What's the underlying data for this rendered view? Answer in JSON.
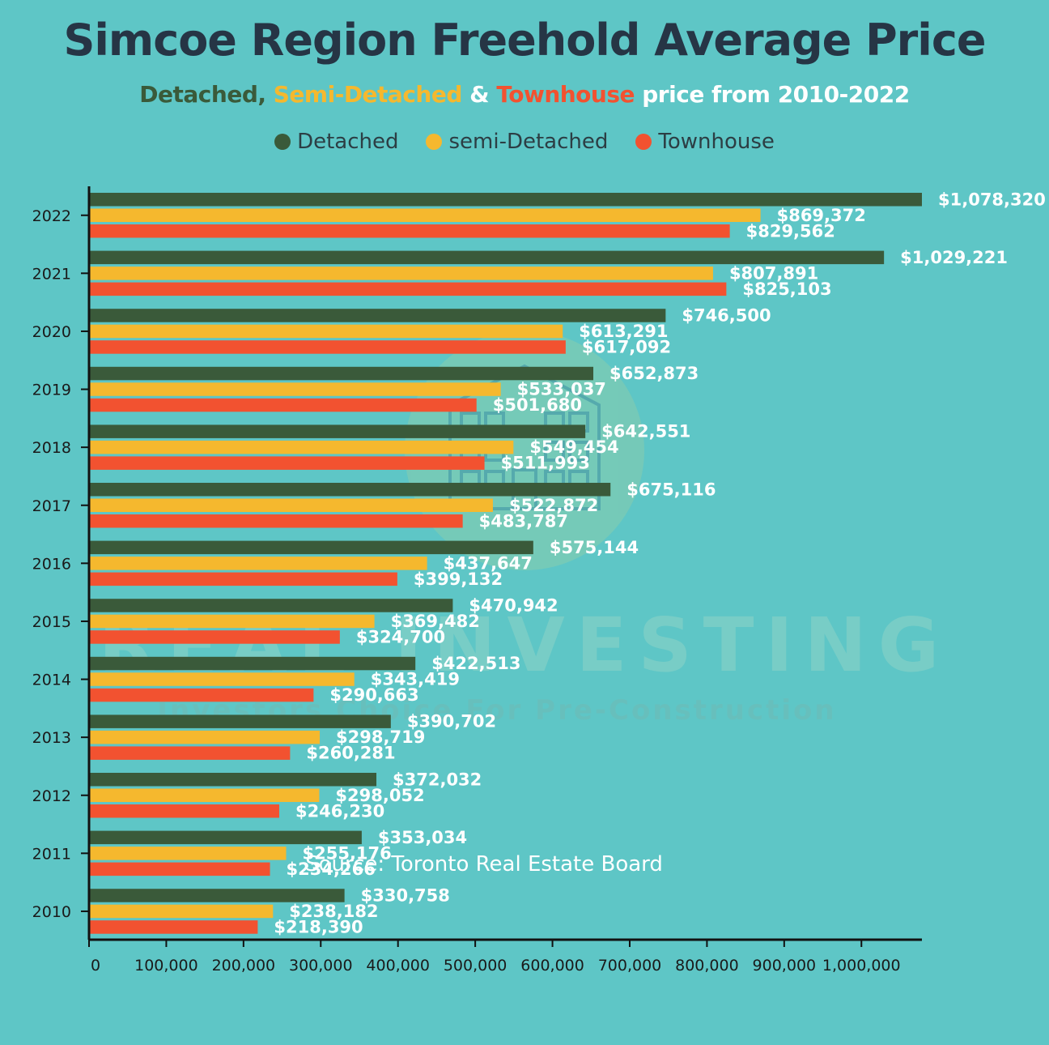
{
  "chart_data": {
    "type": "bar",
    "orientation": "horizontal",
    "title": "Simcoe Region Freehold Average Price",
    "subtitle": {
      "detached": "Detached,",
      "semi": "Semi-Detached",
      "amp": "&",
      "town": "Townhouse",
      "rest": "price from 2010-2022"
    },
    "categories": [
      "2022",
      "2021",
      "2020",
      "2019",
      "2018",
      "2017",
      "2016",
      "2015",
      "2014",
      "2013",
      "2012",
      "2011",
      "2010"
    ],
    "series": [
      {
        "name": "Detached",
        "color": "#3a5a3a",
        "values": [
          1078320,
          1029221,
          746500,
          652873,
          642551,
          675116,
          575144,
          470942,
          422513,
          390702,
          372032,
          353034,
          330758
        ],
        "labels": [
          "$1,078,320",
          "$1,029,221",
          "$746,500",
          "$652,873",
          "$642,551",
          "$675,116",
          "$575,144",
          "$470,942",
          "$422,513",
          "$390,702",
          "$372,032",
          "$353,034",
          "$330,758"
        ]
      },
      {
        "name": "semi-Detached",
        "color": "#f5b82e",
        "values": [
          869372,
          807891,
          613291,
          533037,
          549454,
          522872,
          437647,
          369482,
          343419,
          298719,
          298052,
          255176,
          238182
        ],
        "labels": [
          "$869,372",
          "$807,891",
          "$613,291",
          "$533,037",
          "$549,454",
          "$522,872",
          "$437,647",
          "$369,482",
          "$343,419",
          "$298,719",
          "$298,052",
          "$255,176",
          "$238,182"
        ]
      },
      {
        "name": "Townhouse",
        "color": "#f25230",
        "values": [
          829562,
          825103,
          617092,
          501680,
          511993,
          483787,
          399132,
          324700,
          290663,
          260281,
          246230,
          234266,
          218390
        ],
        "labels": [
          "$829,562",
          "$825,103",
          "$617,092",
          "$501,680",
          "$511,993",
          "$483,787",
          "$399,132",
          "$324,700",
          "$290,663",
          "$260,281",
          "$246,230",
          "$234,266",
          "$218,390"
        ]
      }
    ],
    "xticks": [
      0,
      100000,
      200000,
      300000,
      400000,
      500000,
      600000,
      700000,
      800000,
      900000,
      1000000
    ],
    "xtick_labels": [
      "0",
      "100,000",
      "200,000",
      "300,000",
      "400,000",
      "500,000",
      "600,000",
      "700,000",
      "800,000",
      "900,000",
      "1,000,000"
    ],
    "xlim": [
      0,
      1078320
    ],
    "legend_position": "top",
    "grid": false
  },
  "watermark": {
    "text": "REAL INVESTING",
    "tagline": "Investors Choice For Pre-Construction"
  },
  "source": "Source: Toronto Real Estate Board"
}
